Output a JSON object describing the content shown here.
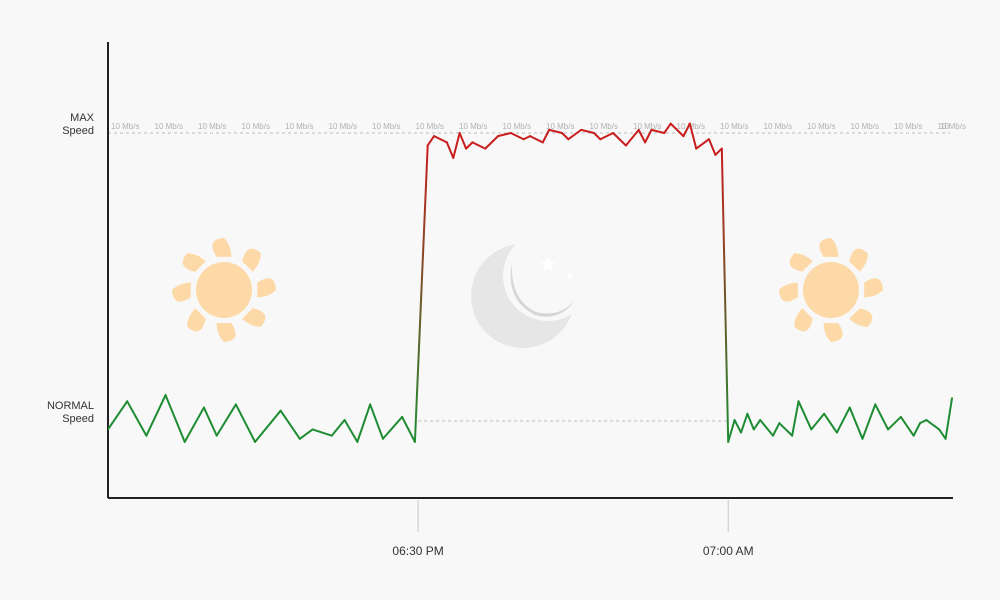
{
  "chart_data": {
    "type": "line",
    "title": "",
    "y_labels": [
      {
        "lines": [
          "MAX",
          "Speed"
        ],
        "level": "max"
      },
      {
        "lines": [
          "NORMAL",
          "Speed"
        ],
        "level": "normal"
      }
    ],
    "x_ticks": [
      "06:30 PM",
      "07:00 AM"
    ],
    "max_line_label": "10 Mb/s",
    "max_line_label_tail": "10",
    "grid": false,
    "legend": "none",
    "icons": [
      "sun-icon",
      "moon-icon",
      "sun-icon"
    ],
    "colors": {
      "normal": "#1e8c32",
      "max": "#c81e1e",
      "axis": "#222222",
      "guide": "#bbbbbb",
      "sun": "#fcd9a6",
      "moon": "#e6e6e6"
    },
    "series": [
      {
        "values": [
          [
            0,
            5
          ],
          [
            3,
            14
          ],
          [
            6,
            3
          ],
          [
            9,
            16
          ],
          [
            12,
            1
          ],
          [
            15,
            12
          ],
          [
            17,
            3
          ],
          [
            20,
            13
          ],
          [
            23,
            1
          ],
          [
            27,
            11
          ],
          [
            30,
            2
          ],
          [
            32,
            5
          ],
          [
            35,
            3
          ],
          [
            37,
            8
          ],
          [
            39,
            1
          ],
          [
            41,
            13
          ],
          [
            43,
            2
          ],
          [
            46,
            9
          ],
          [
            48,
            1
          ],
          [
            50,
            96
          ],
          [
            51,
            99
          ],
          [
            52,
            98
          ],
          [
            53,
            97
          ],
          [
            54,
            92
          ],
          [
            55,
            100
          ],
          [
            56,
            95
          ],
          [
            57,
            97
          ],
          [
            59,
            95
          ],
          [
            60,
            97
          ],
          [
            61,
            99
          ],
          [
            63,
            100
          ],
          [
            65,
            98
          ],
          [
            66,
            99
          ],
          [
            68,
            97
          ],
          [
            69,
            101
          ],
          [
            71,
            100
          ],
          [
            72,
            98
          ],
          [
            74,
            101
          ],
          [
            76,
            100
          ],
          [
            77,
            98
          ],
          [
            79,
            100
          ],
          [
            80,
            98
          ],
          [
            81,
            96
          ],
          [
            83,
            101
          ],
          [
            84,
            97
          ],
          [
            85,
            101
          ],
          [
            87,
            100
          ],
          [
            88,
            103
          ],
          [
            90,
            99
          ],
          [
            91,
            103
          ],
          [
            92,
            95
          ],
          [
            94,
            98
          ],
          [
            95,
            93
          ],
          [
            96,
            95
          ],
          [
            97,
            1
          ],
          [
            98,
            8
          ],
          [
            99,
            4
          ],
          [
            100,
            10
          ],
          [
            101,
            5
          ],
          [
            102,
            8
          ],
          [
            104,
            3
          ],
          [
            105,
            7
          ],
          [
            107,
            3
          ],
          [
            108,
            14
          ],
          [
            110,
            5
          ],
          [
            112,
            10
          ],
          [
            114,
            4
          ],
          [
            116,
            12
          ],
          [
            118,
            2
          ],
          [
            120,
            13
          ],
          [
            122,
            5
          ],
          [
            124,
            9
          ],
          [
            126,
            3
          ],
          [
            127,
            7
          ],
          [
            128,
            8
          ],
          [
            130,
            5
          ],
          [
            131,
            2
          ],
          [
            132,
            15
          ]
        ]
      }
    ]
  }
}
